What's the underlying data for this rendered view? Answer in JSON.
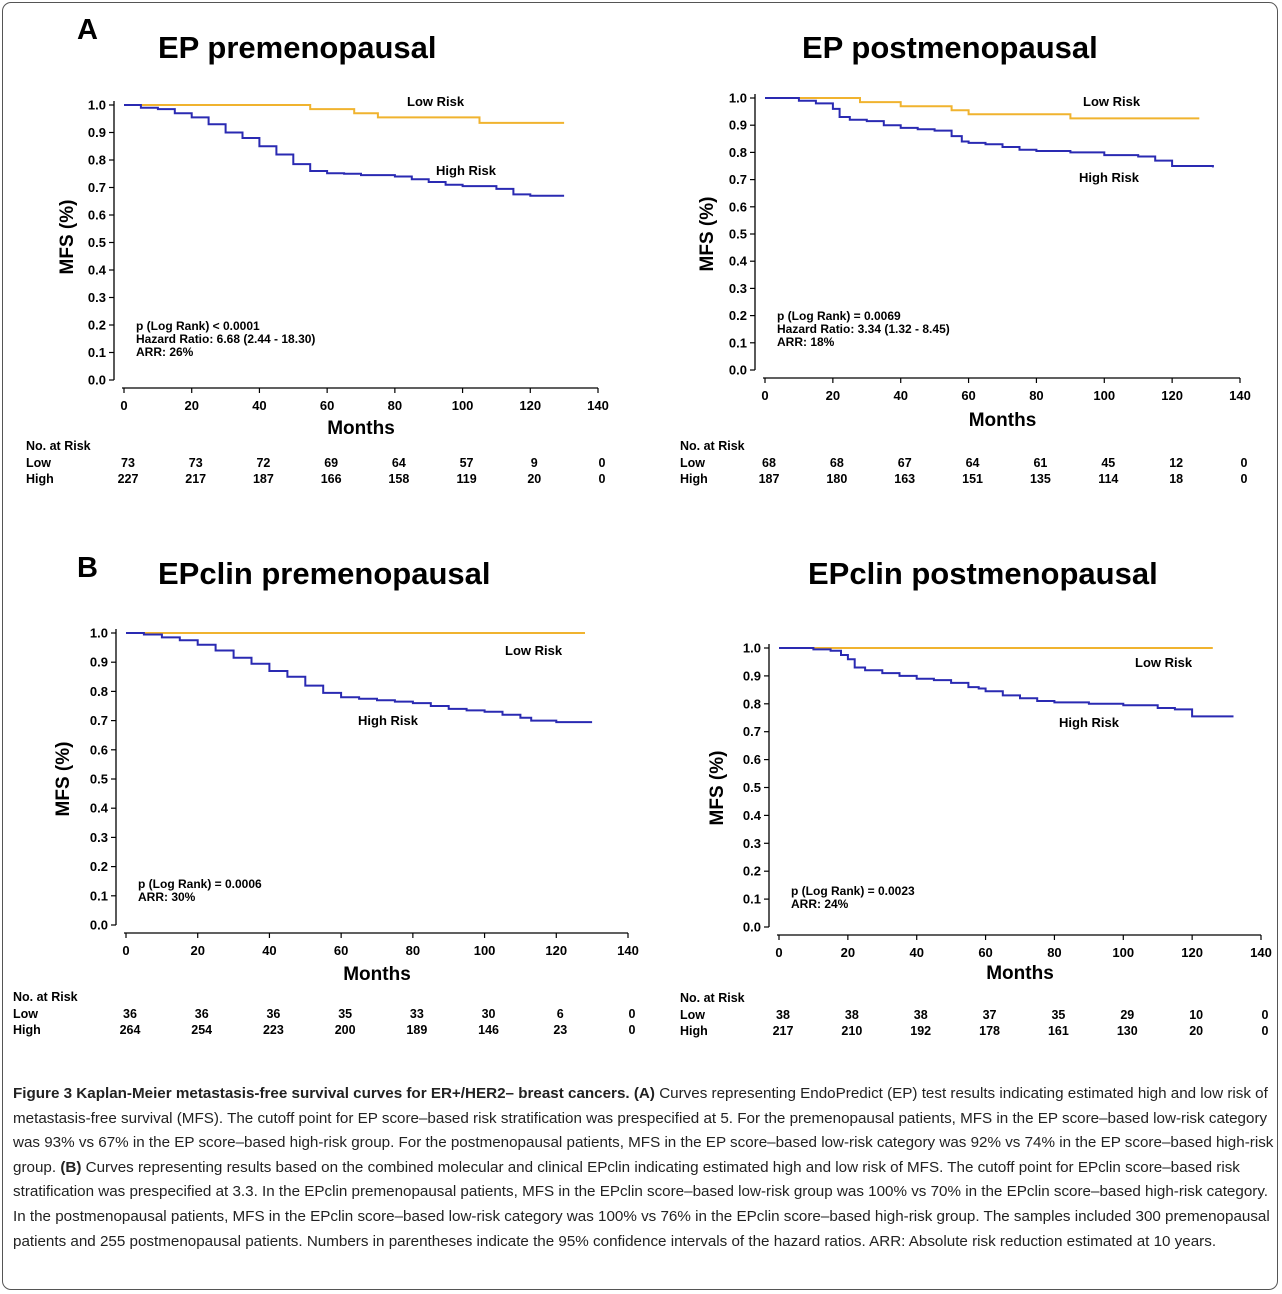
{
  "panels": [
    {
      "letter": "A"
    },
    {
      "letter": "B"
    }
  ],
  "chart_data": [
    {
      "type": "line",
      "title": "EP premenopausal",
      "xlabel": "Months",
      "ylabel": "MFS (%)",
      "xlim": [
        0,
        140
      ],
      "ylim": [
        0,
        1
      ],
      "xticks": [
        "0",
        "20",
        "40",
        "60",
        "80",
        "100",
        "120",
        "140"
      ],
      "yticks": [
        "0.0",
        "0.1",
        "0.2",
        "0.3",
        "0.4",
        "0.5",
        "0.6",
        "0.7",
        "0.8",
        "0.9",
        "1.0"
      ],
      "series": [
        {
          "name": "Low Risk",
          "color": "#f0b32f",
          "x": [
            0,
            55,
            55,
            68,
            68,
            75,
            75,
            105,
            105,
            130
          ],
          "y": [
            1,
            1,
            0.985,
            0.985,
            0.97,
            0.97,
            0.955,
            0.955,
            0.935,
            0.935
          ]
        },
        {
          "name": "High Risk",
          "color": "#2a2ab2",
          "x": [
            0,
            5,
            10,
            15,
            20,
            25,
            30,
            35,
            40,
            45,
            50,
            55,
            60,
            65,
            70,
            80,
            85,
            90,
            95,
            100,
            110,
            115,
            120,
            130
          ],
          "y": [
            1,
            0.99,
            0.985,
            0.97,
            0.955,
            0.93,
            0.9,
            0.88,
            0.85,
            0.82,
            0.785,
            0.76,
            0.752,
            0.75,
            0.745,
            0.74,
            0.73,
            0.72,
            0.71,
            0.705,
            0.695,
            0.675,
            0.67,
            0.67
          ]
        }
      ],
      "annotations": [
        "p (Log Rank) < 0.0001",
        "Hazard Ratio: 6.68 (2.44 - 18.30)",
        "ARR: 26%"
      ],
      "risk_table": {
        "title": "No. at Risk",
        "rows": [
          {
            "label": "Low",
            "values": [
              "73",
              "73",
              "72",
              "69",
              "64",
              "57",
              "9",
              "0"
            ]
          },
          {
            "label": "High",
            "values": [
              "227",
              "217",
              "187",
              "166",
              "158",
              "119",
              "20",
              "0"
            ]
          }
        ]
      }
    },
    {
      "type": "line",
      "title": "EP postmenopausal",
      "xlabel": "Months",
      "ylabel": "MFS (%)",
      "xlim": [
        0,
        140
      ],
      "ylim": [
        0,
        1
      ],
      "xticks": [
        "0",
        "20",
        "40",
        "60",
        "80",
        "100",
        "120",
        "140"
      ],
      "yticks": [
        "0.0",
        "0.1",
        "0.2",
        "0.3",
        "0.4",
        "0.5",
        "0.6",
        "0.7",
        "0.8",
        "0.9",
        "1.0"
      ],
      "series": [
        {
          "name": "Low Risk",
          "color": "#f0b32f",
          "x": [
            0,
            28,
            28,
            40,
            40,
            55,
            55,
            60,
            60,
            90,
            90,
            128
          ],
          "y": [
            1,
            1,
            0.985,
            0.985,
            0.97,
            0.97,
            0.955,
            0.955,
            0.94,
            0.94,
            0.925,
            0.925
          ]
        },
        {
          "name": "High Risk",
          "color": "#2a2ab2",
          "x": [
            0,
            10,
            15,
            20,
            22,
            25,
            30,
            35,
            40,
            45,
            50,
            55,
            58,
            60,
            65,
            70,
            75,
            80,
            90,
            100,
            110,
            115,
            120,
            132
          ],
          "y": [
            1,
            0.99,
            0.98,
            0.96,
            0.93,
            0.92,
            0.915,
            0.9,
            0.89,
            0.885,
            0.88,
            0.86,
            0.84,
            0.835,
            0.83,
            0.82,
            0.81,
            0.805,
            0.8,
            0.79,
            0.785,
            0.77,
            0.75,
            0.745
          ]
        }
      ],
      "annotations": [
        "p (Log Rank) = 0.0069",
        "Hazard Ratio: 3.34 (1.32 - 8.45)",
        "ARR: 18%"
      ],
      "risk_table": {
        "title": "No. at Risk",
        "rows": [
          {
            "label": "Low",
            "values": [
              "68",
              "68",
              "67",
              "64",
              "61",
              "45",
              "12",
              "0"
            ]
          },
          {
            "label": "High",
            "values": [
              "187",
              "180",
              "163",
              "151",
              "135",
              "114",
              "18",
              "0"
            ]
          }
        ]
      }
    },
    {
      "type": "line",
      "title": "EPclin premenopausal",
      "xlabel": "Months",
      "ylabel": "MFS (%)",
      "xlim": [
        0,
        140
      ],
      "ylim": [
        0,
        1
      ],
      "xticks": [
        "0",
        "20",
        "40",
        "60",
        "80",
        "100",
        "120",
        "140"
      ],
      "yticks": [
        "0.0",
        "0.1",
        "0.2",
        "0.3",
        "0.4",
        "0.5",
        "0.6",
        "0.7",
        "0.8",
        "0.9",
        "1.0"
      ],
      "series": [
        {
          "name": "Low Risk",
          "color": "#f0b32f",
          "x": [
            0,
            128
          ],
          "y": [
            1,
            1
          ]
        },
        {
          "name": "High Risk",
          "color": "#2a2ab2",
          "x": [
            0,
            5,
            10,
            15,
            20,
            25,
            30,
            35,
            40,
            45,
            50,
            55,
            60,
            65,
            70,
            75,
            80,
            85,
            90,
            95,
            100,
            105,
            110,
            113,
            120,
            130
          ],
          "y": [
            1,
            0.995,
            0.985,
            0.975,
            0.96,
            0.94,
            0.915,
            0.895,
            0.87,
            0.85,
            0.82,
            0.795,
            0.78,
            0.775,
            0.77,
            0.765,
            0.76,
            0.75,
            0.74,
            0.735,
            0.73,
            0.72,
            0.71,
            0.7,
            0.695,
            0.695
          ]
        }
      ],
      "annotations": [
        "p (Log Rank) = 0.0006",
        "ARR: 30%"
      ],
      "risk_table": {
        "title": "No. at Risk",
        "rows": [
          {
            "label": "Low",
            "values": [
              "36",
              "36",
              "36",
              "35",
              "33",
              "30",
              "6",
              "0"
            ]
          },
          {
            "label": "High",
            "values": [
              "264",
              "254",
              "223",
              "200",
              "189",
              "146",
              "23",
              "0"
            ]
          }
        ]
      }
    },
    {
      "type": "line",
      "title": "EPclin postmenopausal",
      "xlabel": "Months",
      "ylabel": "MFS (%)",
      "xlim": [
        0,
        140
      ],
      "ylim": [
        0,
        1
      ],
      "xticks": [
        "0",
        "20",
        "40",
        "60",
        "80",
        "100",
        "120",
        "140"
      ],
      "yticks": [
        "0.0",
        "0.1",
        "0.2",
        "0.3",
        "0.4",
        "0.5",
        "0.6",
        "0.7",
        "0.8",
        "0.9",
        "1.0"
      ],
      "series": [
        {
          "name": "Low Risk",
          "color": "#f0b32f",
          "x": [
            0,
            126
          ],
          "y": [
            1,
            1
          ]
        },
        {
          "name": "High Risk",
          "color": "#2a2ab2",
          "x": [
            0,
            10,
            15,
            18,
            20,
            22,
            25,
            30,
            35,
            40,
            45,
            50,
            55,
            58,
            60,
            65,
            70,
            75,
            80,
            90,
            100,
            110,
            115,
            120,
            132
          ],
          "y": [
            1,
            0.995,
            0.99,
            0.975,
            0.96,
            0.93,
            0.92,
            0.91,
            0.9,
            0.89,
            0.885,
            0.875,
            0.86,
            0.855,
            0.845,
            0.83,
            0.82,
            0.81,
            0.805,
            0.8,
            0.795,
            0.785,
            0.78,
            0.755,
            0.755
          ]
        }
      ],
      "annotations": [
        "p (Log Rank) = 0.0023",
        "ARR: 24%"
      ],
      "risk_table": {
        "title": "No. at Risk",
        "rows": [
          {
            "label": "Low",
            "values": [
              "38",
              "38",
              "38",
              "37",
              "35",
              "29",
              "10",
              "0"
            ]
          },
          {
            "label": "High",
            "values": [
              "217",
              "210",
              "192",
              "178",
              "161",
              "130",
              "20",
              "0"
            ]
          }
        ]
      }
    }
  ],
  "caption": {
    "label": "Figure 3 Kaplan-Meier metastasis-free survival curves for ER+/HER2– breast cancers.",
    "part_a_marker": "(A)",
    "part_a_text": " Curves representing EndoPredict (EP) test results indicating estimated high and low risk of metastasis-free survival (MFS). The cutoff point for EP score–based risk stratification was prespecified at 5. For the premenopausal patients, MFS in the EP score–based low-risk category was 93% vs 67% in the EP score–based high-risk group. For the postmenopausal patients, MFS in the EP score–based low-risk category was 92% vs 74% in the EP score–based high-risk group.",
    "part_b_marker": "(B)",
    "part_b_text": " Curves representing results based on the combined molecular and clinical EPclin indicating estimated high and low risk of MFS. The cutoff point for EPclin score–based risk stratification was prespecified at 3.3. In the EPclin premenopausal patients, MFS in the EPclin score–based low-risk group was 100% vs 70% in the EPclin score–based high-risk category. In the postmenopausal patients, MFS in the EPclin score–based low-risk category was 100% vs 76% in the EPclin score–based high-risk group. The samples included 300 premenopausal patients and 255 postmenopausal patients. Numbers in parentheses indicate the 95% confidence intervals of the hazard ratios. ARR: Absolute risk reduction estimated at 10 years."
  }
}
